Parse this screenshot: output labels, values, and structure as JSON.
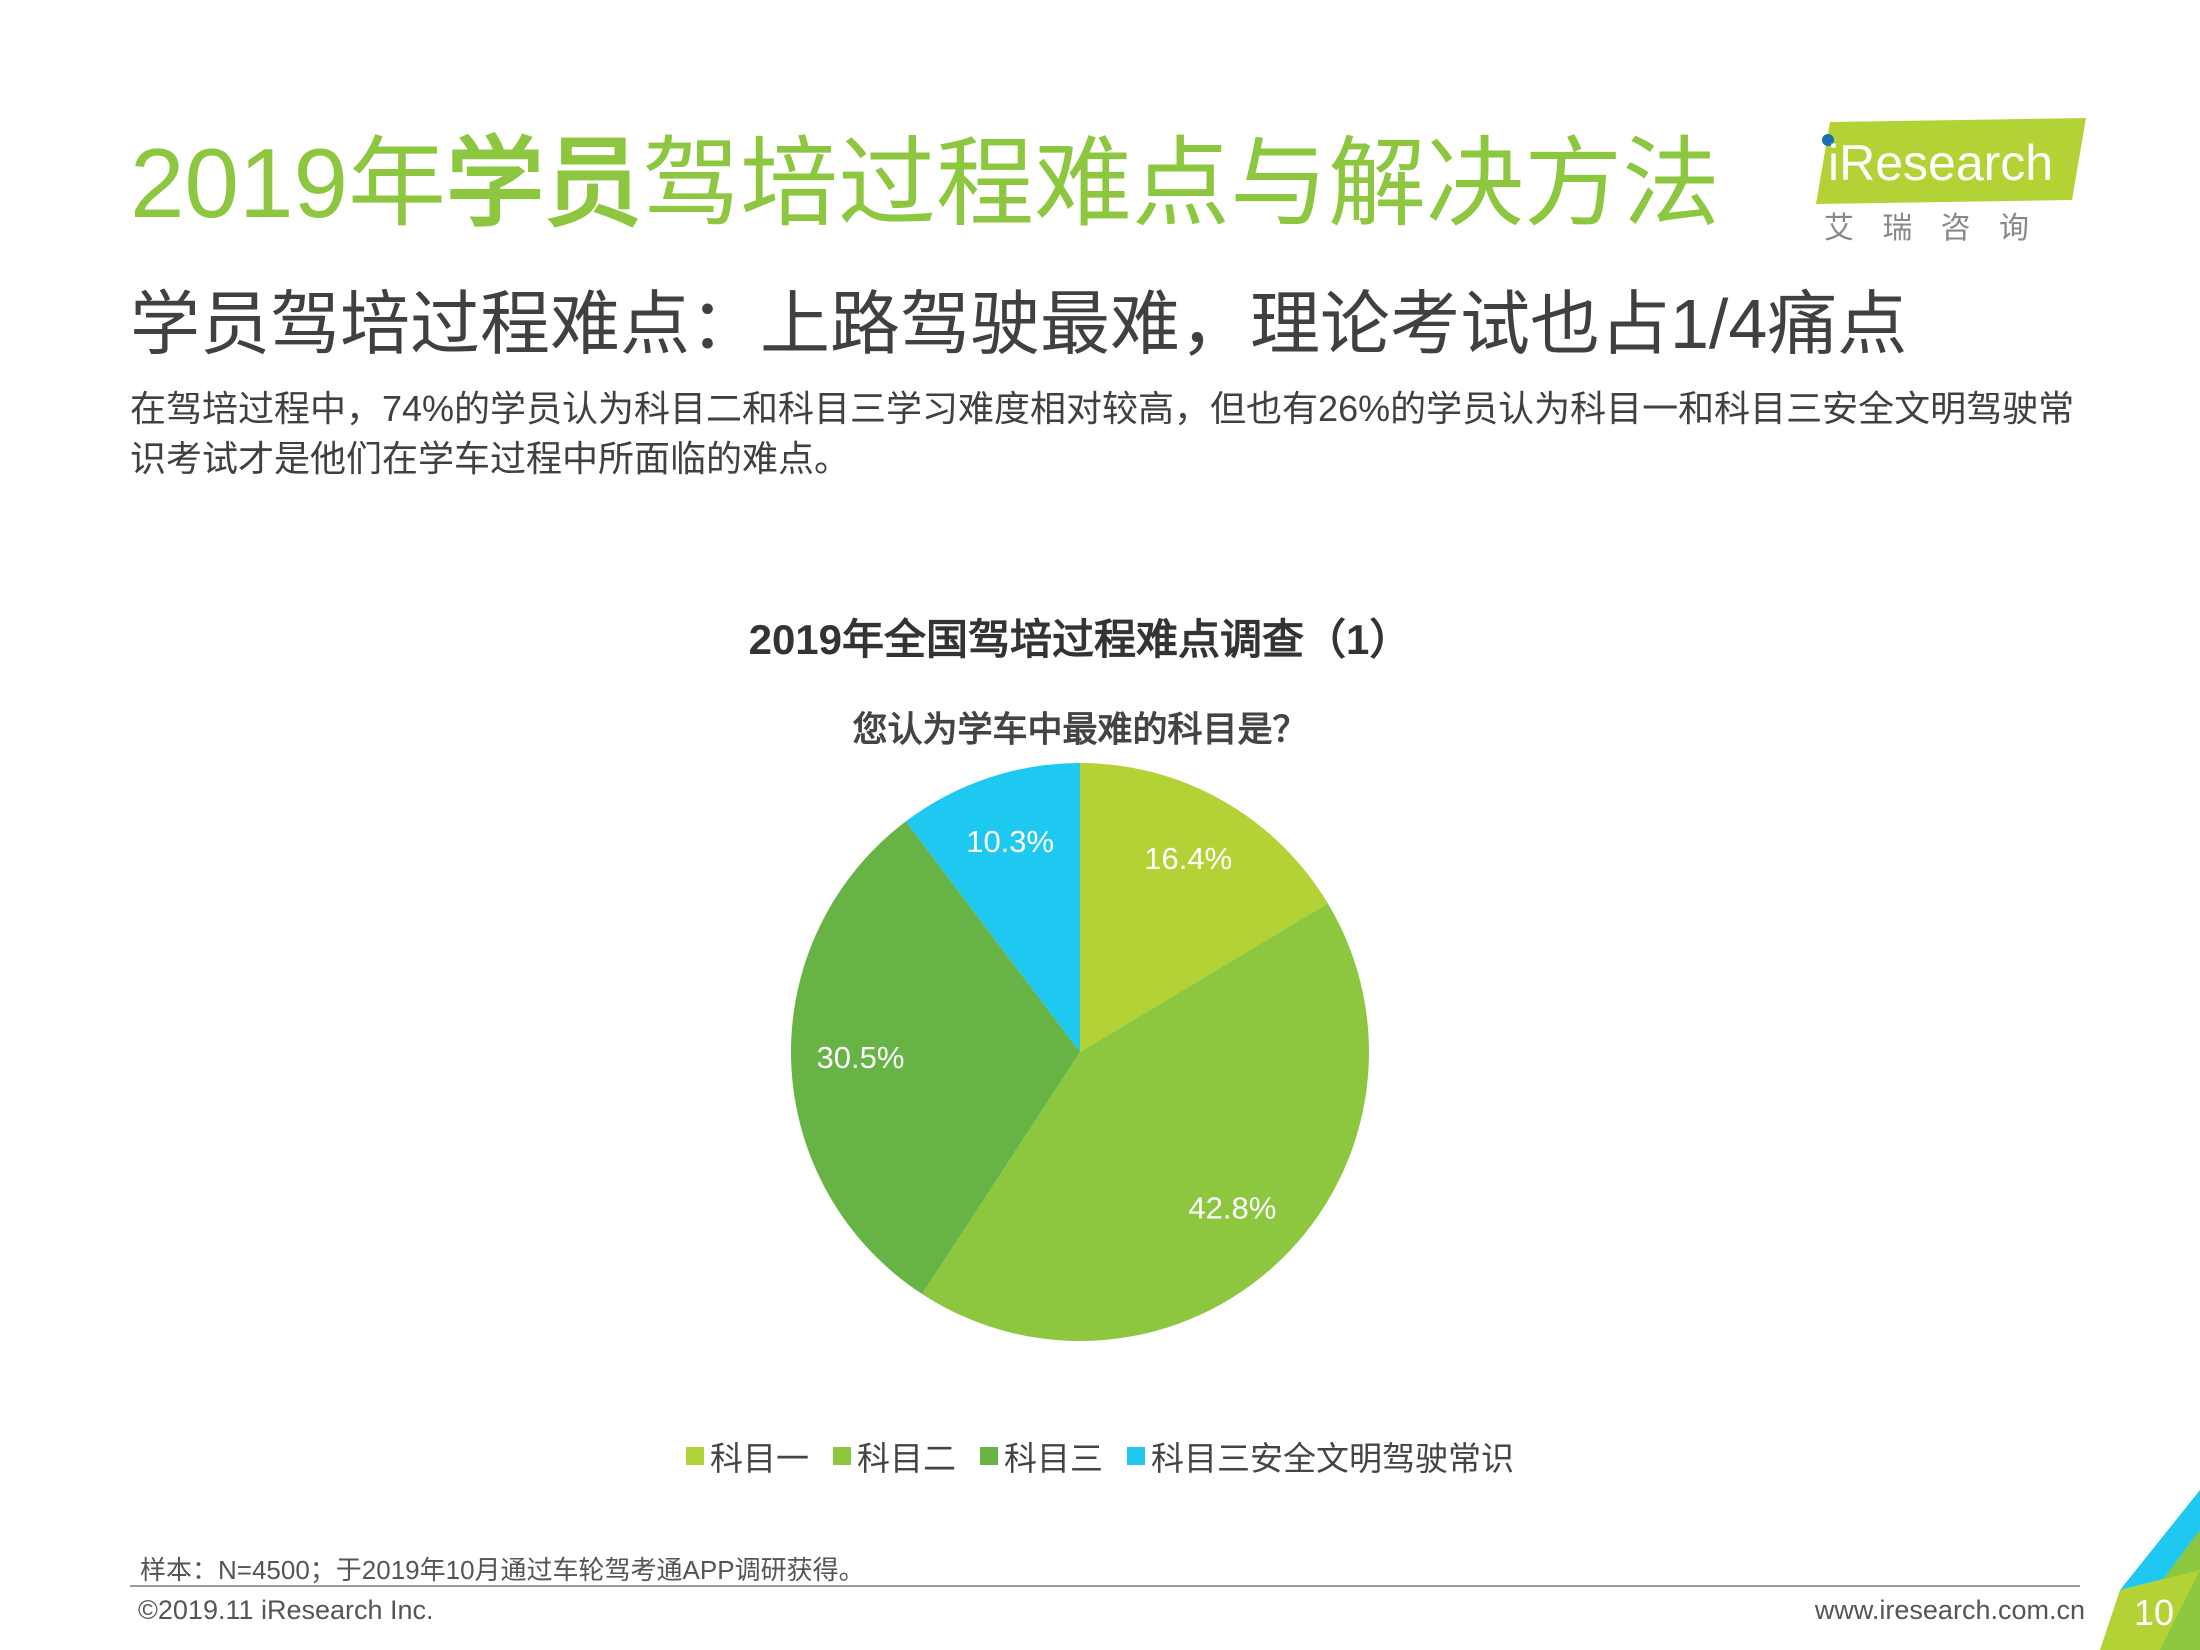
{
  "title_parts": [
    "2019年",
    "学员",
    "驾培过程难点与解决方法"
  ],
  "logo": {
    "brand": "iResearch",
    "tagline": "艾 瑞 咨 询"
  },
  "subtitle": "学员驾培过程难点：上路驾驶最难，理论考试也占1/4痛点",
  "description": "在驾培过程中，74%的学员认为科目二和科目三学习难度相对较高，但也有26%的学员认为科目一和科目三安全文明驾驶常识考试才是他们在学车过程中所面临的难点。",
  "chart_data": {
    "type": "pie",
    "title": "2019年全国驾培过程难点调查（1）",
    "subtitle": "您认为学车中最难的科目是？",
    "categories": [
      "科目一",
      "科目二",
      "科目三",
      "科目三安全文明驾驶常识"
    ],
    "values": [
      16.4,
      42.8,
      30.5,
      10.3
    ],
    "value_labels": [
      "16.4%",
      "42.8%",
      "30.5%",
      "10.3%"
    ],
    "colors": [
      "#b2d235",
      "#8dc63f",
      "#67b346",
      "#1ec8f0"
    ]
  },
  "footnote": "样本：N=4500；于2019年10月通过车轮驾考通APP调研获得。",
  "copyright": "©2019.11 iResearch Inc.",
  "website": "www.iresearch.com.cn",
  "page_number": "10"
}
